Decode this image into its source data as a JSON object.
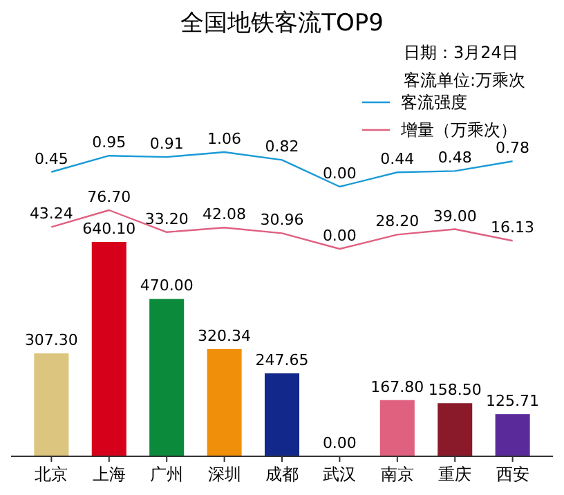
{
  "chart_data": [
    {
      "type": "line",
      "title": "全国地铁客流TOP9",
      "annotations": [
        "日期：3月24日",
        "客流单位:万乘次"
      ],
      "categories": [
        null,
        null,
        null,
        null,
        null,
        null,
        null,
        null,
        null
      ],
      "tick_labels": false,
      "legend": "top right",
      "series": [
        {
          "name": "客流强度",
          "color": "#1a9ad6",
          "values": [
            0.45,
            0.95,
            0.91,
            1.06,
            0.82,
            0.0,
            0.44,
            0.48,
            0.78
          ],
          "value_labels": [
            "0.45",
            "0.95",
            "0.91",
            "1.06",
            "0.82",
            "0.00",
            "0.44",
            "0.48",
            "0.78"
          ]
        }
      ]
    },
    {
      "type": "line",
      "categories": [
        null,
        null,
        null,
        null,
        null,
        null,
        null,
        null,
        null
      ],
      "tick_labels": false,
      "legend": "top right",
      "series": [
        {
          "name": "增量（万乘次）",
          "color": "#e06080",
          "values": [
            43.24,
            76.7,
            33.2,
            42.08,
            30.96,
            0.0,
            28.2,
            39.0,
            16.13
          ],
          "value_labels": [
            "43.24",
            "76.70",
            "33.20",
            "42.08",
            "30.96",
            "0.00",
            "28.20",
            "39.00",
            "16.13"
          ]
        }
      ]
    },
    {
      "type": "bar",
      "categories": [
        "北京",
        "上海",
        "广州",
        "深圳",
        "成都",
        "武汉",
        "南京",
        "重庆",
        "西安"
      ],
      "tick_labels": "x",
      "series": [
        {
          "colors": [
            "#dcc57e",
            "#d7001a",
            "#0a8a3a",
            "#f0900a",
            "#12288a",
            "#888888",
            "#e06080",
            "#8a1a2a",
            "#5a2a9a"
          ],
          "values": [
            307.3,
            640.1,
            470.0,
            320.34,
            247.65,
            0.0,
            167.8,
            158.5,
            125.71
          ],
          "value_labels": [
            "307.30",
            "640.10",
            "470.00",
            "320.34",
            "247.65",
            "0.00",
            "167.80",
            "158.50",
            "125.71"
          ]
        }
      ]
    }
  ]
}
